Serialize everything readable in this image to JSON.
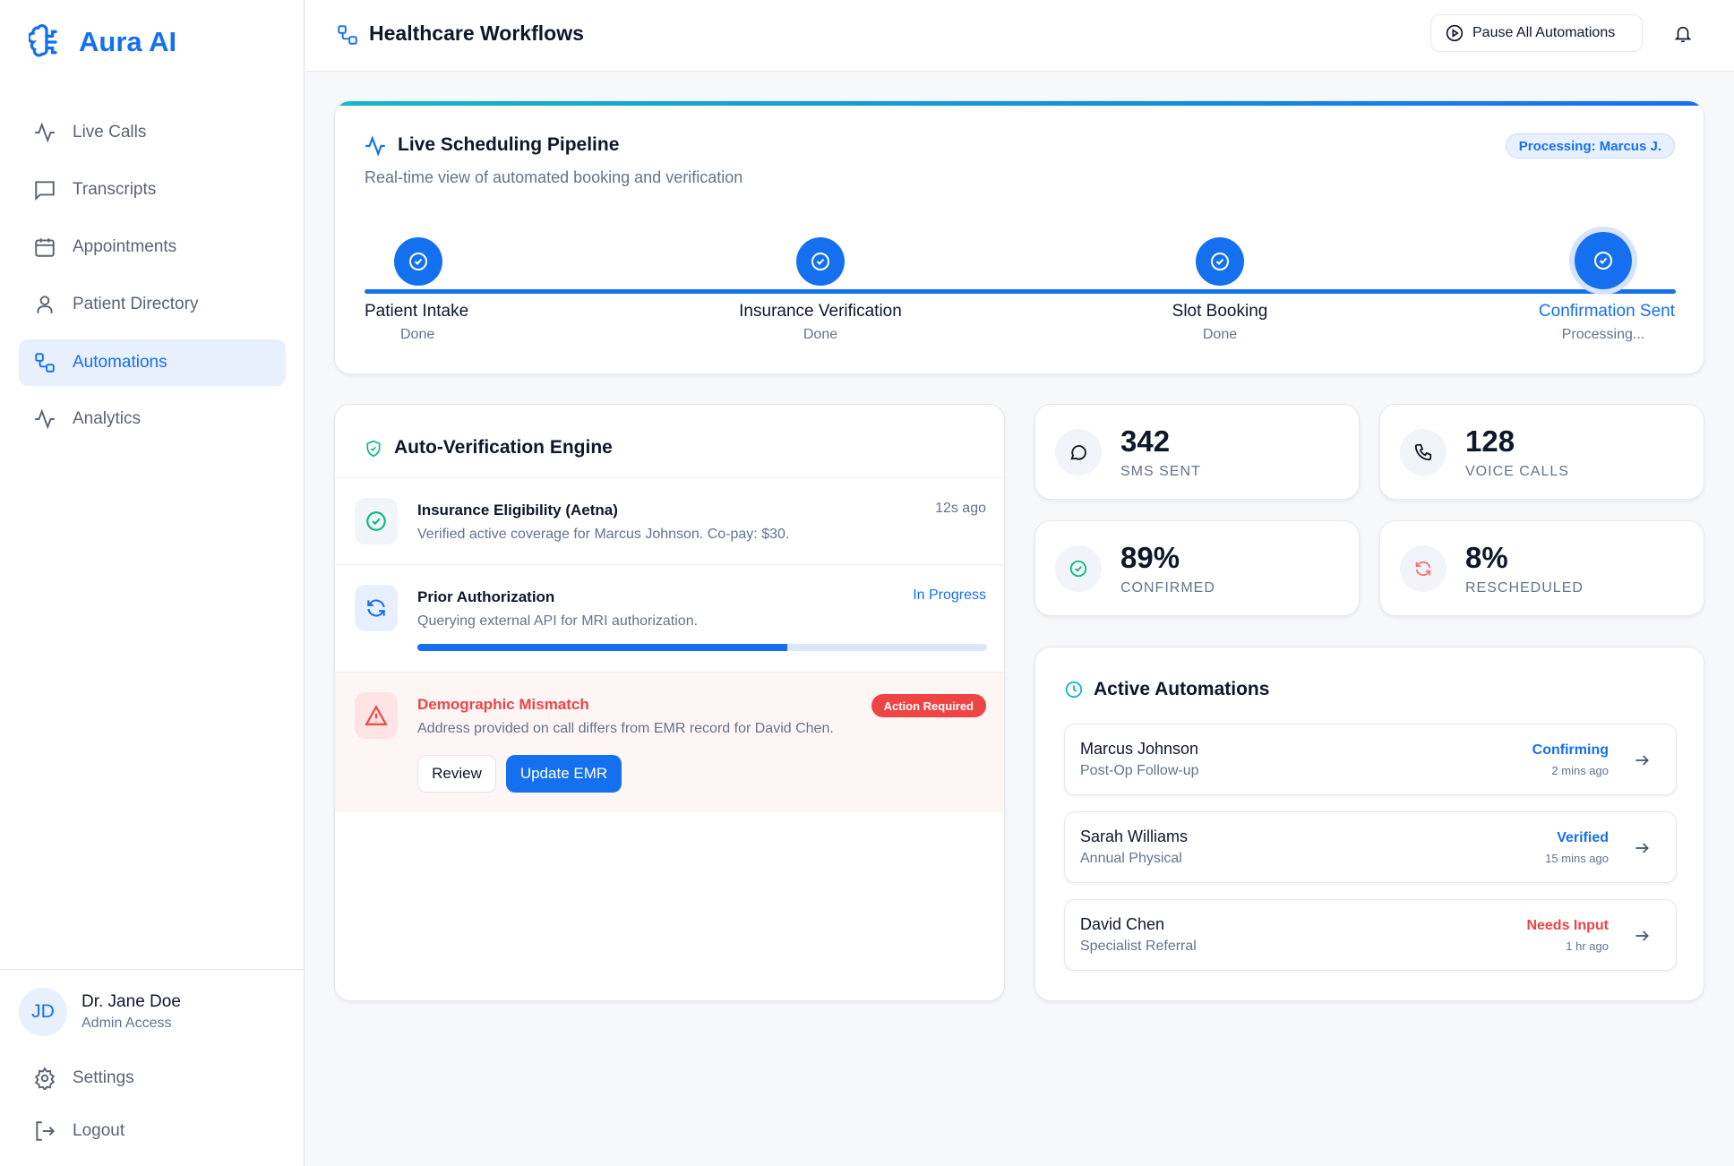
{
  "brand": {
    "name": "Aura AI",
    "color": "#1570ef"
  },
  "sidebar": {
    "items": [
      {
        "label": "Live Calls",
        "icon": "activity-icon"
      },
      {
        "label": "Transcripts",
        "icon": "message-square-icon"
      },
      {
        "label": "Appointments",
        "icon": "calendar-icon"
      },
      {
        "label": "Patient Directory",
        "icon": "user-icon"
      },
      {
        "label": "Automations",
        "icon": "workflow-icon",
        "active": true
      },
      {
        "label": "Analytics",
        "icon": "activity-icon"
      }
    ],
    "user": {
      "initials": "JD",
      "name": "Dr. Jane Doe",
      "role": "Admin Access"
    },
    "settings_label": "Settings",
    "logout_label": "Logout"
  },
  "header": {
    "title": "Healthcare Workflows",
    "pause_label": "Pause All Automations"
  },
  "pipeline": {
    "title": "Live Scheduling Pipeline",
    "subtitle": "Real-time view of automated booking and verification",
    "badge": "Processing: Marcus J.",
    "progress_percent": 100,
    "steps": [
      {
        "label": "Patient Intake",
        "status": "Done"
      },
      {
        "label": "Insurance Verification",
        "status": "Done"
      },
      {
        "label": "Slot Booking",
        "status": "Done"
      },
      {
        "label": "Confirmation Sent",
        "status": "Processing...",
        "active": true
      }
    ]
  },
  "verification": {
    "title": "Auto-Verification Engine",
    "items": [
      {
        "title": "Insurance Eligibility (Aetna)",
        "desc": "Verified active coverage for Marcus Johnson. Co-pay: $30.",
        "meta": "12s ago"
      },
      {
        "title": "Prior Authorization",
        "desc": "Querying external API for MRI authorization.",
        "meta": "In Progress",
        "progress_percent": 65
      },
      {
        "title": "Demographic Mismatch",
        "desc": "Address provided on call differs from EMR record for David Chen.",
        "meta": "Action Required",
        "review_label": "Review",
        "update_label": "Update EMR"
      }
    ]
  },
  "stats": [
    {
      "value": "342",
      "label": "SMS SENT",
      "icon": "message-circle-icon"
    },
    {
      "value": "128",
      "label": "VOICE CALLS",
      "icon": "phone-icon"
    },
    {
      "value": "89%",
      "label": "CONFIRMED",
      "icon": "check-circle-icon"
    },
    {
      "value": "8%",
      "label": "RESCHEDULED",
      "icon": "refresh-icon"
    }
  ],
  "active": {
    "title": "Active Automations",
    "items": [
      {
        "name": "Marcus Johnson",
        "type": "Post-Op Follow-up",
        "status": "Confirming",
        "time": "2 mins ago",
        "color": "#1570ef"
      },
      {
        "name": "Sarah Williams",
        "type": "Annual Physical",
        "status": "Verified",
        "time": "15 mins ago",
        "color": "#1570ef"
      },
      {
        "name": "David Chen",
        "type": "Specialist Referral",
        "status": "Needs Input",
        "time": "1 hr ago",
        "color": "#ef4444"
      }
    ]
  }
}
